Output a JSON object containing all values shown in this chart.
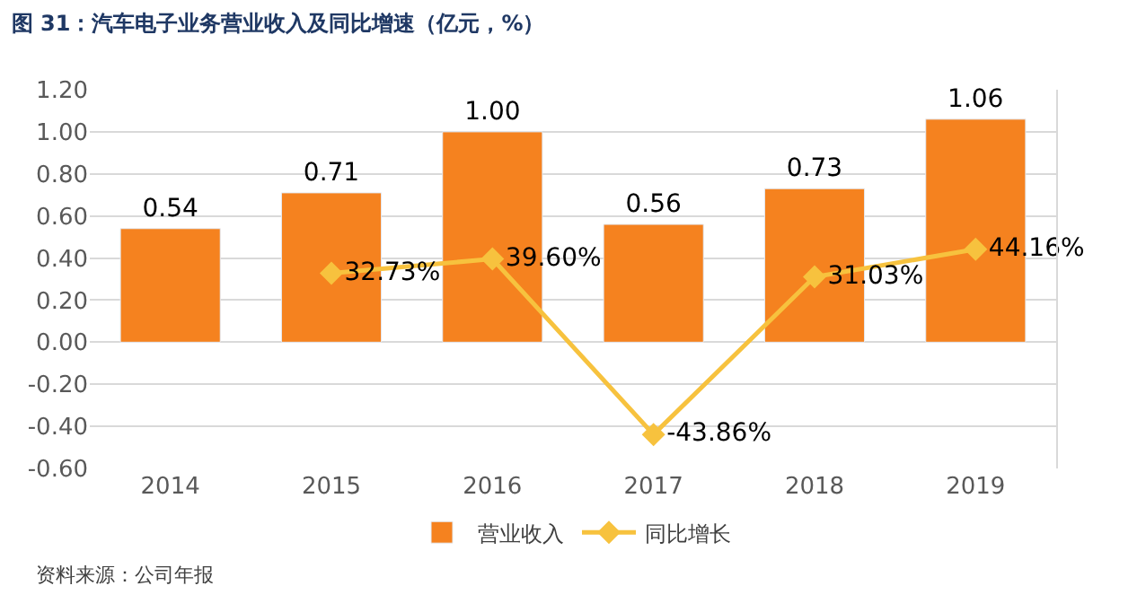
{
  "chart_data": {
    "type": "bar",
    "title": "图 31：汽车电子业务营业收入及同比增速（亿元，%）",
    "categories": [
      "2014",
      "2015",
      "2016",
      "2017",
      "2018",
      "2019"
    ],
    "series": [
      {
        "name": "营业收入",
        "color": "#f5821f",
        "values": [
          0.54,
          0.71,
          1.0,
          0.56,
          0.73,
          1.06
        ],
        "value_labels": [
          "0.54",
          "0.71",
          "1.00",
          "0.56",
          "0.73",
          "1.06"
        ]
      },
      {
        "name": "同比增长",
        "type": "line",
        "axis": "y2",
        "color": "#f7c23e",
        "marker": "diamond",
        "values": [
          null,
          32.73,
          39.6,
          -43.86,
          31.03,
          44.16
        ],
        "value_labels": [
          null,
          "32.73%",
          "39.60%",
          "-43.86%",
          "31.03%",
          "44.16%"
        ]
      }
    ],
    "ylim": [
      -0.6,
      1.2
    ],
    "yticks": [
      {
        "value": -0.6,
        "label": "-0.60"
      },
      {
        "value": -0.4,
        "label": "-0.40"
      },
      {
        "value": -0.2,
        "label": "-0.20"
      },
      {
        "value": 0,
        "label": "0.00"
      },
      {
        "value": 0.2,
        "label": "0.20"
      },
      {
        "value": 0.4,
        "label": "0.40"
      },
      {
        "value": 0.6,
        "label": "0.60"
      },
      {
        "value": 0.8,
        "label": "0.80"
      },
      {
        "value": 1.0,
        "label": "1.00"
      },
      {
        "value": 1.2,
        "label": "1.20"
      }
    ],
    "y2lim": [
      -60,
      120
    ],
    "grid": "y",
    "legend": "bottom",
    "annotations": [
      "资料来源：公司年报"
    ]
  }
}
